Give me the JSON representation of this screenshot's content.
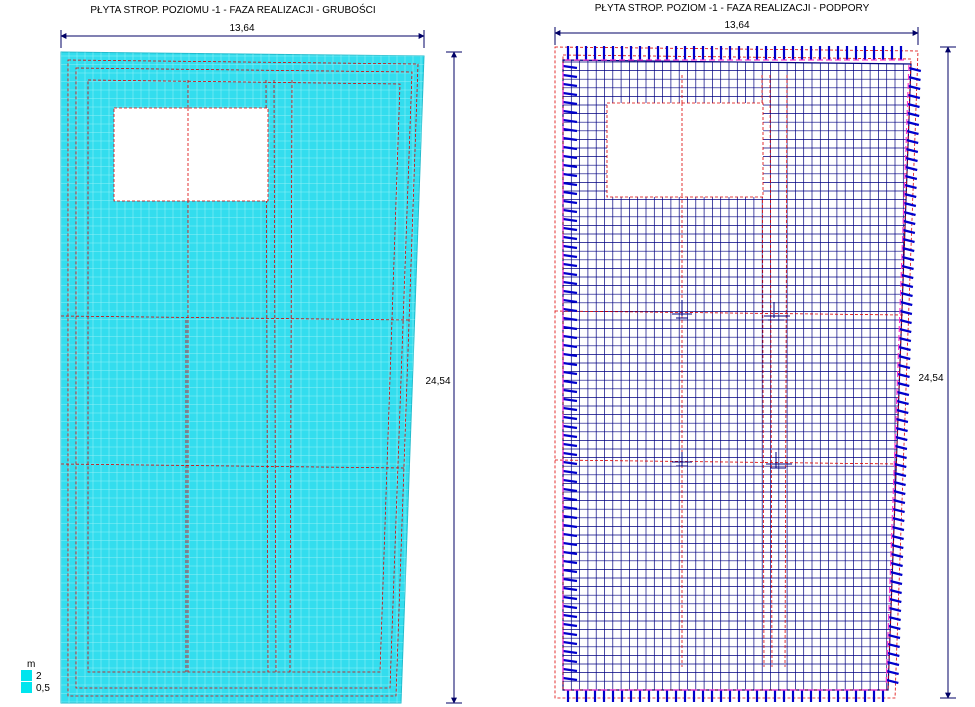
{
  "left_panel": {
    "title": "PŁYTA STROP. POZIOMU -1 - FAZA REALIZACJI - GRUBOŚCI",
    "width_dim": "13,64",
    "height_dim": "24,54",
    "legend": {
      "unit": "m",
      "max_label": "2",
      "min_label": "0,5",
      "fill_color": "#00e5ee"
    }
  },
  "right_panel": {
    "title": "PŁYTA STROP. POZIOM -1 - FAZA REALIZACJI - PODPORY",
    "width_dim": "13,64",
    "height_dim": "24,54"
  },
  "colors": {
    "slab_fill": "#33ddee",
    "mesh_light": "#8ff0f6",
    "mesh_dark": "#000080",
    "support": "#0000cc",
    "support_edge": "#ff33cc",
    "dashed_red": "#dd0000",
    "dim_line": "#000066"
  }
}
